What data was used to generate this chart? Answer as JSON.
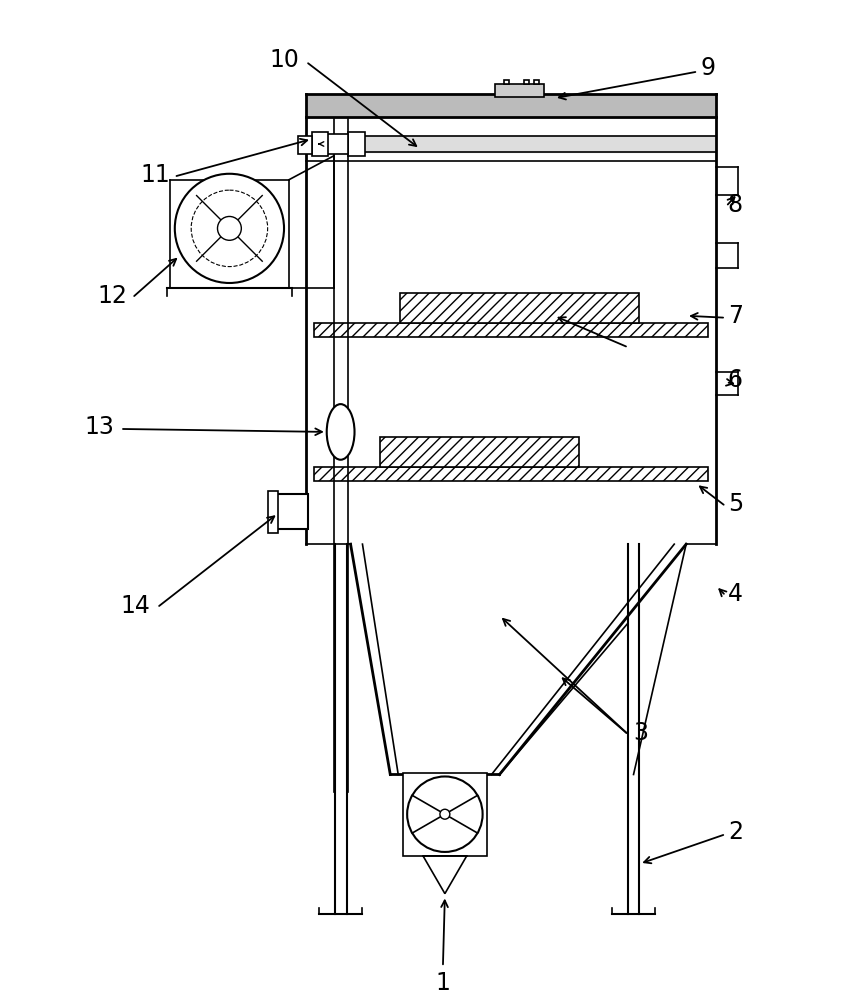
{
  "bg_color": "#ffffff",
  "lc": "#000000",
  "figsize": [
    8.56,
    10.0
  ],
  "dpi": 100,
  "lw_main": 2.0,
  "lw_thin": 1.2,
  "lw_med": 1.5
}
